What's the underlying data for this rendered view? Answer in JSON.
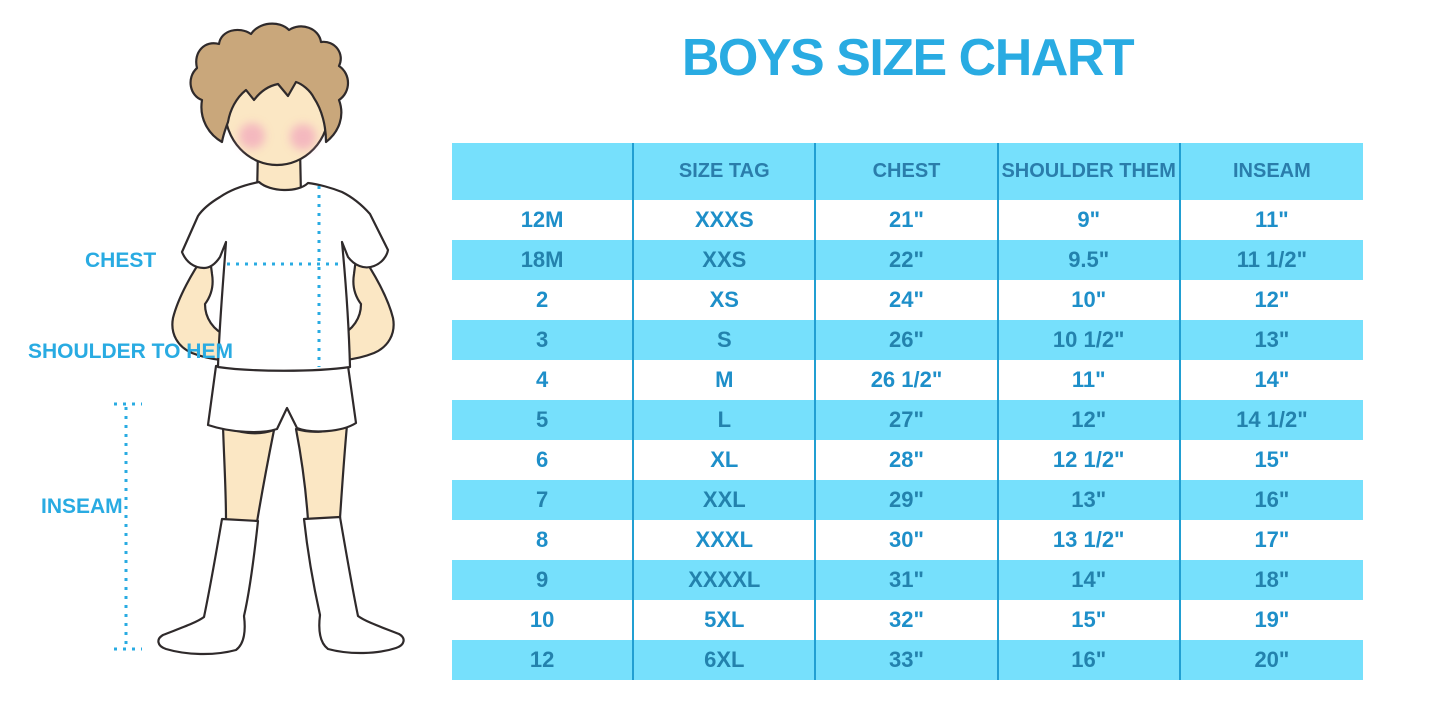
{
  "title": "BOYS SIZE CHART",
  "diagram": {
    "figure": "boy-front-view-illustration",
    "labels": [
      {
        "text": "CHEST"
      },
      {
        "text": "SHOULDER TO HEM"
      },
      {
        "text": "INSEAM"
      }
    ]
  },
  "chart_data": {
    "type": "table",
    "title": "BOYS SIZE CHART",
    "columns": [
      "",
      "SIZE TAG",
      "CHEST",
      "SHOULDER THEM",
      "INSEAM"
    ],
    "rows": [
      [
        "12M",
        "XXXS",
        "21\"",
        "9\"",
        "11\""
      ],
      [
        "18M",
        "XXS",
        "22\"",
        "9.5\"",
        "11 1/2\""
      ],
      [
        "2",
        "XS",
        "24\"",
        "10\"",
        "12\""
      ],
      [
        "3",
        "S",
        "26\"",
        "10 1/2\"",
        "13\""
      ],
      [
        "4",
        "M",
        "26 1/2\"",
        "11\"",
        "14\""
      ],
      [
        "5",
        "L",
        "27\"",
        "12\"",
        "14 1/2\""
      ],
      [
        "6",
        "XL",
        "28\"",
        "12 1/2\"",
        "15\""
      ],
      [
        "7",
        "XXL",
        "29\"",
        "13\"",
        "16\""
      ],
      [
        "8",
        "XXXL",
        "30\"",
        "13 1/2\"",
        "17\""
      ],
      [
        "9",
        "XXXXL",
        "31\"",
        "14\"",
        "18\""
      ],
      [
        "10",
        "5XL",
        "32\"",
        "15\"",
        "19\""
      ],
      [
        "12",
        "6XL",
        "33\"",
        "16\"",
        "20\""
      ]
    ],
    "layout": {
      "striped_rows": "alternating white and light blue, header light blue",
      "grid": "vertical dividers only"
    }
  },
  "colors": {
    "accent": "#29abe2",
    "table_fill_light_blue": "#76e0fc",
    "table_divider": "#219fd2",
    "header_text": "#2a7dab",
    "cell_text": "#1e8fc9",
    "cell_text_on_blue": "#2382ad",
    "skin": "#fbe7c4",
    "hair": "#c9a77b",
    "cheek": "#f2a9bd",
    "outline": "#2f2a2b"
  }
}
